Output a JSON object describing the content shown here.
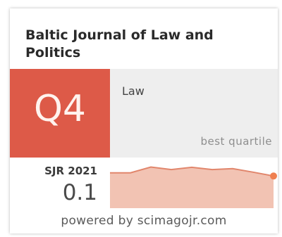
{
  "journal": {
    "title": "Baltic Journal of Law and Politics"
  },
  "quartile": {
    "value": "Q4",
    "category": "Law",
    "caption": "best quartile",
    "color": "#dd5a48"
  },
  "sjr": {
    "label": "SJR 2021",
    "value": "0.1"
  },
  "footer": {
    "powered_by": "powered by scimagojr.com"
  },
  "chart_data": {
    "type": "area",
    "title": "",
    "xlabel": "",
    "ylabel": "",
    "x": [
      1,
      2,
      3,
      4,
      5,
      6,
      7,
      8,
      9
    ],
    "values": [
      0.11,
      0.11,
      0.128,
      0.12,
      0.127,
      0.12,
      0.123,
      0.112,
      0.1
    ],
    "ylim": [
      0,
      0.14
    ],
    "fill_color": "#f2c3b3",
    "line_color": "#e1866c",
    "last_point_color": "#ef8050",
    "grid": false
  }
}
